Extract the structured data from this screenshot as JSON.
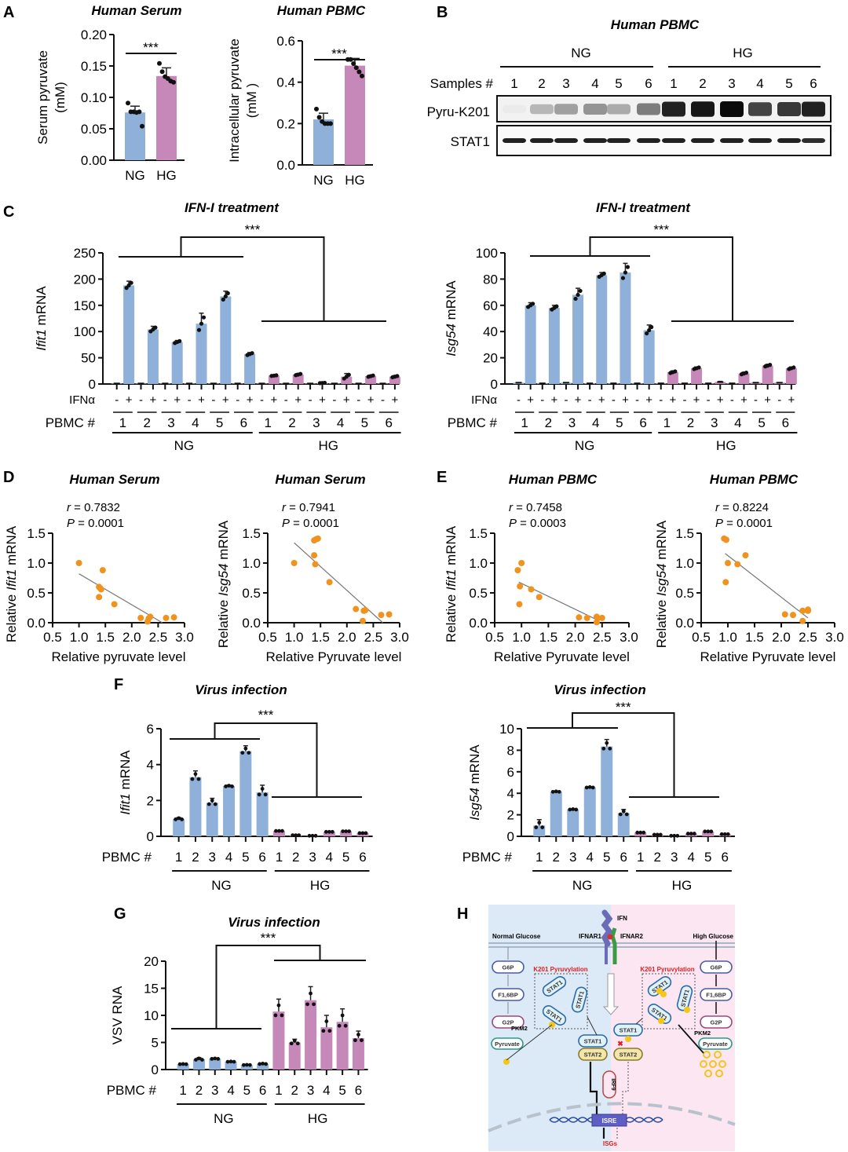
{
  "colors": {
    "ng": "#8fb0d9",
    "hg": "#c688b8",
    "scatter": "#f0921e",
    "fit": "#777777"
  },
  "panels": {
    "A": {
      "letter": "A"
    },
    "B": {
      "letter": "B"
    },
    "C": {
      "letter": "C"
    },
    "D": {
      "letter": "D"
    },
    "E": {
      "letter": "E"
    },
    "F": {
      "letter": "F"
    },
    "G": {
      "letter": "G"
    },
    "H": {
      "letter": "H"
    }
  },
  "western_blot": {
    "title": "Human PBMC",
    "groups": [
      "NG",
      "HG"
    ],
    "samples_label": "Samples #",
    "samples": [
      "1",
      "2",
      "3",
      "4",
      "5",
      "6",
      "1",
      "2",
      "3",
      "4",
      "5",
      "6"
    ],
    "rows": [
      {
        "label": "Pyru-K201",
        "intensity": [
          0.02,
          0.25,
          0.35,
          0.4,
          0.3,
          0.5,
          0.9,
          0.95,
          1.0,
          0.75,
          0.8,
          0.9
        ]
      },
      {
        "label": "STAT1",
        "intensity": [
          0.9,
          0.9,
          0.9,
          0.9,
          0.9,
          0.9,
          0.9,
          0.9,
          0.9,
          0.9,
          0.9,
          0.85
        ]
      }
    ]
  },
  "diagram": {
    "left_label": "Normal Glucose",
    "right_label": "High Glucose",
    "ifn": "IFN",
    "ifnar1": "IFNAR1",
    "ifnar2": "IFNAR2",
    "metabolites": [
      "G6P",
      "F1,6BP",
      "G2P"
    ],
    "pkm2": "PKM2",
    "pyruvate": "Pyruvate",
    "pyruvylation": "K201 Pyruvylation",
    "stat1": "STAT1",
    "stat2": "STAT2",
    "irf9": "IRF9",
    "isre": "ISRE",
    "isgs": "ISGs"
  },
  "chart_data": [
    {
      "id": "A1",
      "type": "bar",
      "title": "Human Serum",
      "ylabel": "Serum pyruvate (mM)",
      "xlabel": "",
      "categories": [
        "NG",
        "HG"
      ],
      "values": [
        0.076,
        0.134
      ],
      "errors": [
        0.01,
        0.013
      ],
      "points": [
        [
          0.091,
          0.077,
          0.077,
          0.076,
          0.077,
          0.054
        ],
        [
          0.154,
          0.141,
          0.133,
          0.13,
          0.126,
          0.124
        ]
      ],
      "ylim": [
        0,
        0.2
      ],
      "yticks": [
        "0.00",
        "0.05",
        "0.10",
        "0.15",
        "0.20"
      ],
      "significance": "***"
    },
    {
      "id": "A2",
      "type": "bar",
      "title": "Human PBMC",
      "ylabel": "Intracellular pyruvate (mM )",
      "xlabel": "",
      "categories": [
        "NG",
        "HG"
      ],
      "values": [
        0.22,
        0.48
      ],
      "errors": [
        0.03,
        0.035
      ],
      "points": [
        [
          0.27,
          0.23,
          0.21,
          0.2,
          0.2,
          0.2
        ],
        [
          0.51,
          0.51,
          0.49,
          0.47,
          0.45,
          0.43
        ]
      ],
      "ylim": [
        0,
        0.6
      ],
      "yticks": [
        "0.0",
        "0.2",
        "0.4",
        "0.6"
      ],
      "significance": "***"
    },
    {
      "id": "C1",
      "type": "bar",
      "title": "IFN-I treatment",
      "ylabel": "Ifit1 mRNA",
      "ylabel_italic": "Ifit1",
      "ylabel_rest": " mRNA",
      "row1_label": "IFNα",
      "row2_label": "PBMC #",
      "groups": [
        "NG",
        "HG"
      ],
      "treatment": [
        "-",
        "+"
      ],
      "pbmc": [
        "1",
        "2",
        "3",
        "4",
        "5",
        "6"
      ],
      "ng_values": [
        1,
        188,
        1,
        104,
        1,
        80,
        1,
        115,
        1,
        167,
        1,
        57
      ],
      "ng_errors": [
        0,
        8,
        0,
        6,
        0,
        3,
        0,
        20,
        0,
        10,
        0,
        3
      ],
      "hg_values": [
        1,
        16,
        1,
        18,
        1,
        2,
        1,
        14,
        1,
        15,
        1,
        14
      ],
      "hg_errors": [
        0,
        1,
        0,
        2,
        0,
        0.5,
        0,
        6,
        0,
        2,
        0,
        2
      ],
      "ylim": [
        0,
        250
      ],
      "yticks": [
        "0",
        "50",
        "100",
        "150",
        "200",
        "250"
      ],
      "significance": "***"
    },
    {
      "id": "C2",
      "type": "bar",
      "title": "IFN-I treatment",
      "ylabel": "Isg54 mRNA",
      "ylabel_italic": "Isg54",
      "ylabel_rest": "  mRNA",
      "row1_label": "IFNα",
      "row2_label": "PBMC #",
      "groups": [
        "NG",
        "HG"
      ],
      "treatment": [
        "-",
        "+"
      ],
      "pbmc": [
        "1",
        "2",
        "3",
        "4",
        "5",
        "6"
      ],
      "ng_values": [
        1,
        60,
        0.5,
        58,
        1,
        68,
        0.5,
        83,
        0.5,
        85,
        0.5,
        41
      ],
      "ng_errors": [
        0,
        2,
        0,
        2,
        0,
        5,
        0,
        2,
        0,
        7,
        0,
        4
      ],
      "hg_values": [
        0.5,
        9,
        0.5,
        12,
        0.5,
        1.5,
        0.5,
        8,
        1,
        14,
        1,
        12
      ],
      "hg_errors": [
        0,
        1,
        0,
        1,
        0,
        0.5,
        0,
        1,
        0,
        1,
        0,
        1
      ],
      "ylim": [
        0,
        100
      ],
      "yticks": [
        "0",
        "20",
        "40",
        "60",
        "80",
        "100"
      ],
      "significance": "***"
    },
    {
      "id": "D1",
      "type": "scatter",
      "title": "Human Serum",
      "stat_r": "0.7832",
      "stat_p": "0.0001",
      "ylabel_pre": "Relative ",
      "ylabel_italic": "Ifit1",
      "ylabel_rest": " mRNA",
      "xlabel": "Relative pyruvate level",
      "x": [
        1.0,
        1.45,
        1.38,
        1.4,
        1.42,
        1.38,
        1.67,
        2.17,
        2.3,
        2.32,
        2.35,
        2.65,
        2.8
      ],
      "y": [
        1.0,
        0.88,
        0.6,
        0.58,
        0.56,
        0.43,
        0.31,
        0.08,
        0.02,
        0.07,
        0.1,
        0.08,
        0.09
      ],
      "fit": [
        [
          1.0,
          0.82
        ],
        [
          2.58,
          0.0
        ]
      ],
      "xlim": [
        0.5,
        3.0
      ],
      "ylim": [
        0,
        1.5
      ],
      "xticks": [
        "0.5",
        "1.0",
        "1.5",
        "2.0",
        "2.5",
        "3.0"
      ],
      "yticks": [
        "0.0",
        "0.5",
        "1.0",
        "1.5"
      ]
    },
    {
      "id": "D2",
      "type": "scatter",
      "title": "Human Serum",
      "stat_r": "0.7941",
      "stat_p": "0.0001",
      "ylabel_pre": "Relative ",
      "ylabel_italic": "Isg54",
      "ylabel_rest": " mRNA",
      "xlabel": "Relative Pyruvate level",
      "x": [
        1.0,
        1.38,
        1.42,
        1.45,
        1.38,
        1.4,
        1.67,
        2.17,
        2.3,
        2.32,
        2.35,
        2.65,
        2.8
      ],
      "y": [
        1.0,
        1.38,
        1.4,
        1.41,
        1.13,
        0.98,
        0.68,
        0.23,
        0.03,
        0.2,
        0.21,
        0.13,
        0.14
      ],
      "fit": [
        [
          1.0,
          1.34
        ],
        [
          2.68,
          0.0
        ]
      ],
      "xlim": [
        0.5,
        3.0
      ],
      "ylim": [
        0,
        1.5
      ],
      "xticks": [
        "0.5",
        "1.0",
        "1.5",
        "2.0",
        "2.5",
        "3.0"
      ],
      "yticks": [
        "0.0",
        "0.5",
        "1.0",
        "1.5"
      ]
    },
    {
      "id": "E1",
      "type": "scatter",
      "title": "Human PBMC",
      "stat_r": "0.7458",
      "stat_p": "0.0003",
      "ylabel_pre": "Relative ",
      "ylabel_italic": "Ifit1",
      "ylabel_rest": " mRNA",
      "xlabel": "Relative Pyruvate level",
      "x": [
        0.93,
        1.0,
        0.97,
        1.18,
        1.33,
        0.96,
        2.07,
        2.22,
        2.4,
        2.42,
        2.5,
        2.4
      ],
      "y": [
        0.88,
        1.0,
        0.61,
        0.56,
        0.43,
        0.31,
        0.09,
        0.08,
        0.1,
        0.08,
        0.08,
        0.01
      ],
      "fit": [
        [
          0.95,
          0.68
        ],
        [
          2.45,
          0.03
        ]
      ],
      "xlim": [
        0.5,
        3.0
      ],
      "ylim": [
        0,
        1.5
      ],
      "xticks": [
        "0.5",
        "1.0",
        "1.5",
        "2.0",
        "2.5",
        "3.0"
      ],
      "yticks": [
        "0.0",
        "0.5",
        "1.0",
        "1.5"
      ]
    },
    {
      "id": "E2",
      "type": "scatter",
      "title": "Human PBMC",
      "stat_r": "0.8224",
      "stat_p": "0.0001",
      "ylabel_pre": "Relative ",
      "ylabel_italic": "Isg54",
      "ylabel_rest": " mRNA",
      "xlabel": "Relative Pyruvate level",
      "x": [
        0.93,
        0.97,
        1.0,
        1.18,
        1.33,
        0.96,
        2.07,
        2.22,
        2.4,
        2.5,
        2.5,
        2.4
      ],
      "y": [
        1.41,
        1.39,
        1.0,
        0.98,
        1.13,
        0.68,
        0.14,
        0.13,
        0.2,
        0.22,
        0.2,
        0.03
      ],
      "fit": [
        [
          0.95,
          1.16
        ],
        [
          2.5,
          0.08
        ]
      ],
      "xlim": [
        0.5,
        3.0
      ],
      "ylim": [
        0,
        1.5
      ],
      "xticks": [
        "0.5",
        "1.0",
        "1.5",
        "2.0",
        "2.5",
        "3.0"
      ],
      "yticks": [
        "0.0",
        "0.5",
        "1.0",
        "1.5"
      ]
    },
    {
      "id": "F1",
      "type": "bar",
      "title": "Virus infection",
      "ylabel_italic": "Ifit1",
      "ylabel_rest": " mRNA",
      "row2_label": "PBMC #",
      "groups": [
        "NG",
        "HG"
      ],
      "pbmc": [
        "1",
        "2",
        "3",
        "4",
        "5",
        "6"
      ],
      "ng_values": [
        0.97,
        3.3,
        1.87,
        2.8,
        4.75,
        2.45
      ],
      "ng_errors": [
        0.08,
        0.35,
        0.25,
        0.05,
        0.3,
        0.4
      ],
      "hg_values": [
        0.3,
        0.06,
        0.03,
        0.25,
        0.28,
        0.18
      ],
      "hg_errors": [
        0,
        0,
        0,
        0,
        0,
        0
      ],
      "ylim": [
        0,
        6
      ],
      "yticks": [
        "0",
        "2",
        "4",
        "6"
      ],
      "significance": "***"
    },
    {
      "id": "F2",
      "type": "bar",
      "title": "Virus infection",
      "ylabel_italic": "Isg54",
      "ylabel_rest": "  mRNA",
      "row2_label": "PBMC #",
      "groups": [
        "NG",
        "HG"
      ],
      "pbmc": [
        "1",
        "2",
        "3",
        "4",
        "5",
        "6"
      ],
      "ng_values": [
        1.0,
        4.15,
        2.5,
        4.55,
        8.35,
        2.15
      ],
      "ng_errors": [
        0.55,
        0.05,
        0.05,
        0.05,
        0.65,
        0.35
      ],
      "hg_values": [
        0.35,
        0.15,
        0.05,
        0.25,
        0.45,
        0.2
      ],
      "hg_errors": [
        0,
        0,
        0,
        0,
        0,
        0
      ],
      "ylim": [
        0,
        10
      ],
      "yticks": [
        "0",
        "2",
        "4",
        "6",
        "8",
        "10"
      ],
      "significance": "***"
    },
    {
      "id": "G",
      "type": "bar",
      "title": "Virus infection",
      "ylabel": "VSV  RNA",
      "row2_label": "PBMC #",
      "groups": [
        "NG",
        "HG"
      ],
      "pbmc": [
        "1",
        "2",
        "3",
        "4",
        "5",
        "6"
      ],
      "ng_values": [
        1.0,
        1.9,
        2.0,
        1.45,
        0.85,
        1.05
      ],
      "ng_errors": [
        0.05,
        0.3,
        0.1,
        0.05,
        0.05,
        0.1
      ],
      "hg_values": [
        10.7,
        5.0,
        12.8,
        7.8,
        8.8,
        5.8
      ],
      "hg_errors": [
        2.3,
        0.6,
        2.5,
        2.2,
        2.4,
        1.3
      ],
      "ylim": [
        0,
        20
      ],
      "yticks": [
        "0",
        "5",
        "10",
        "15",
        "20"
      ],
      "significance": "***"
    }
  ]
}
